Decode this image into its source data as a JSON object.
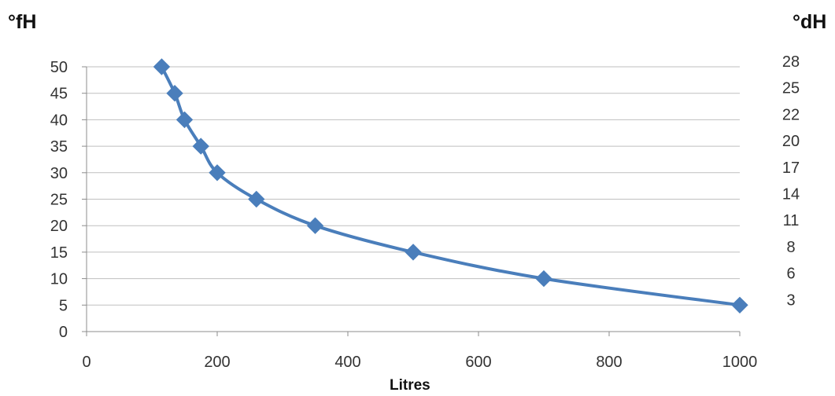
{
  "chart_data": {
    "type": "line",
    "xlabel": "Litres",
    "ylabel": "°fH",
    "y2label": "°dH",
    "xlim": [
      0,
      1000
    ],
    "ylim": [
      0,
      50
    ],
    "x_ticks": [
      "0",
      "200",
      "400",
      "600",
      "800",
      "1000"
    ],
    "y_ticks": [
      "0",
      "5",
      "10",
      "15",
      "20",
      "25",
      "30",
      "35",
      "40",
      "45",
      "50"
    ],
    "y2_ticks": [
      {
        "label": "28",
        "y": 50
      },
      {
        "label": "25",
        "y": 45
      },
      {
        "label": "22",
        "y": 40
      },
      {
        "label": "20",
        "y": 35
      },
      {
        "label": "17",
        "y": 30
      },
      {
        "label": "14",
        "y": 25
      },
      {
        "label": "11",
        "y": 20
      },
      {
        "label": "8",
        "y": 15
      },
      {
        "label": "6",
        "y": 10
      },
      {
        "label": "3",
        "y": 5
      }
    ],
    "grid": "horizontal",
    "series": [
      {
        "color": "#4a7ebb",
        "marker": "diamond",
        "x": [
          115,
          135,
          150,
          175,
          200,
          260,
          350,
          500,
          700,
          1000
        ],
        "y": [
          50,
          45,
          40,
          35,
          30,
          25,
          20,
          15,
          10,
          5
        ]
      }
    ]
  }
}
